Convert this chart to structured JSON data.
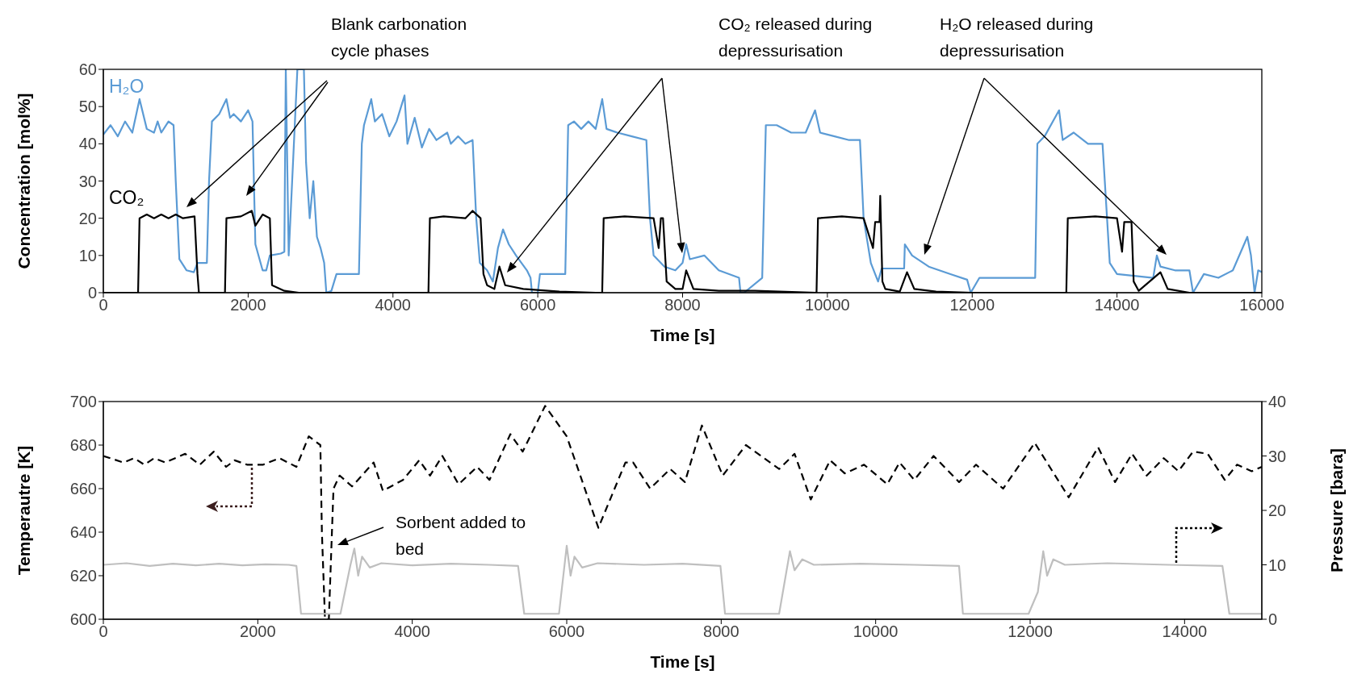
{
  "chart_data": [
    {
      "type": "line",
      "xlabel": "Time [s]",
      "ylabel": "Concentration [mol%]",
      "xlim": [
        0,
        16000
      ],
      "xticks": [
        0,
        2000,
        4000,
        6000,
        8000,
        10000,
        12000,
        14000,
        16000
      ],
      "ylim": [
        0,
        60
      ],
      "yticks": [
        0,
        10,
        20,
        30,
        40,
        50,
        60
      ],
      "grid": false,
      "legend": "left",
      "marker": "none",
      "line_style": "solid",
      "annotations": [
        "Blank carbonation cycle phases",
        "CO₂ released during depressurisation",
        "H₂O released during depressurisation"
      ],
      "series": [
        {
          "name": "H₂O",
          "color": "#5b9bd5",
          "x": [
            0,
            100,
            200,
            300,
            400,
            500,
            600,
            700,
            750,
            800,
            900,
            970,
            1000,
            1050,
            1150,
            1250,
            1300,
            1430,
            1460,
            1500,
            1600,
            1700,
            1750,
            1800,
            1900,
            2000,
            2060,
            2100,
            2200,
            2250,
            2300,
            2450,
            2500,
            2520,
            2560,
            2680,
            2770,
            2800,
            2850,
            2900,
            2950,
            3000,
            3050,
            3080,
            3150,
            3220,
            3400,
            3530,
            3570,
            3600,
            3700,
            3750,
            3850,
            3950,
            4050,
            4160,
            4200,
            4300,
            4400,
            4500,
            4600,
            4750,
            4800,
            4900,
            5000,
            5100,
            5150,
            5200,
            5300,
            5380,
            5450,
            5520,
            5600,
            5700,
            5850,
            5900,
            5920,
            6000,
            6030,
            6380,
            6420,
            6500,
            6600,
            6700,
            6800,
            6890,
            6950,
            7100,
            7300,
            7500,
            7550,
            7600,
            7750,
            7900,
            8000,
            8050,
            8100,
            8300,
            8500,
            8780,
            8800,
            8850,
            9100,
            9150,
            9300,
            9500,
            9700,
            9830,
            9900,
            10100,
            10300,
            10450,
            10500,
            10600,
            10700,
            10750,
            11060,
            11070,
            11170,
            11400,
            11700,
            11930,
            11980,
            12100,
            12870,
            12900,
            13000,
            13200,
            13250,
            13400,
            13600,
            13800,
            13900,
            14000,
            14500,
            14550,
            14600,
            14800,
            15000,
            15050,
            15200,
            15400,
            15600,
            15800,
            15850,
            15900,
            15950,
            16000
          ],
          "values": [
            42.5,
            45,
            42,
            46,
            43,
            52,
            44,
            43,
            46,
            43,
            46,
            45,
            30,
            9,
            6,
            5.5,
            8,
            8,
            30,
            46,
            48,
            52,
            47,
            48,
            46,
            49,
            46,
            13,
            6,
            6,
            10,
            10.5,
            11,
            60,
            10,
            60,
            60,
            35,
            20,
            30,
            15,
            12,
            8,
            0,
            0.5,
            5,
            5,
            5,
            40,
            45,
            52,
            46,
            48,
            42,
            46,
            53,
            40,
            47,
            39,
            44,
            41,
            43,
            40,
            42,
            40,
            41,
            20,
            8,
            6,
            3,
            12,
            17,
            13,
            10,
            6,
            4,
            0,
            0,
            5,
            5,
            45,
            46,
            44,
            46,
            44,
            52,
            44,
            43,
            42,
            41,
            20,
            10,
            7,
            6,
            8,
            13,
            9,
            10,
            6,
            4,
            0,
            0,
            4,
            45,
            45,
            43,
            43,
            49,
            43,
            42,
            41,
            41,
            20,
            8,
            3,
            6.5,
            6.5,
            13,
            10,
            7,
            5,
            3.5,
            0,
            4,
            4,
            40,
            42,
            49,
            41,
            43,
            40,
            40,
            8,
            5,
            4,
            10,
            7,
            6,
            6,
            0,
            5,
            4,
            6,
            15,
            10,
            0,
            6,
            5.5
          ]
        },
        {
          "name": "CO₂",
          "color": "#000000",
          "x": [
            0,
            480,
            500,
            600,
            700,
            800,
            900,
            1000,
            1100,
            1260,
            1300,
            1320,
            1680,
            1700,
            1900,
            2050,
            2100,
            2200,
            2300,
            2330,
            2500,
            2700,
            4490,
            4510,
            4700,
            5000,
            5100,
            5210,
            5250,
            5300,
            5400,
            5470,
            5550,
            5800,
            6300,
            6800,
            6890,
            6910,
            7200,
            7600,
            7670,
            7700,
            7730,
            7780,
            7900,
            8000,
            8050,
            8150,
            8500,
            9000,
            9850,
            9870,
            10200,
            10500,
            10630,
            10660,
            10720,
            10730,
            10760,
            10800,
            11000,
            11100,
            11200,
            11500,
            12000,
            13300,
            13320,
            13700,
            14000,
            14070,
            14100,
            14200,
            14230,
            14300,
            14600,
            14700,
            15000,
            16000
          ],
          "values": [
            0,
            0,
            20,
            21,
            20,
            21,
            20,
            21,
            20,
            20.5,
            5,
            0,
            0,
            20,
            20.5,
            22,
            18,
            21,
            20,
            2,
            0.5,
            0,
            0,
            20,
            20.5,
            20,
            22,
            20,
            5,
            2,
            1,
            7,
            2,
            1,
            0.3,
            0,
            0,
            20,
            20.5,
            20,
            12,
            20,
            20,
            3,
            1,
            1,
            6,
            1,
            0.5,
            0.5,
            0,
            20,
            20.5,
            20,
            12,
            19,
            19,
            26,
            3,
            1,
            0.3,
            5.5,
            1,
            0.3,
            0,
            0,
            20,
            20.5,
            20,
            11,
            19,
            19,
            3,
            0.5,
            5.5,
            1,
            0,
            0
          ]
        }
      ]
    },
    {
      "type": "line",
      "xlabel": "Time [s]",
      "ylabel": "Temperautre [K]",
      "y2label": "Pressure [bara]",
      "xlim": [
        0,
        15000
      ],
      "xticks": [
        0,
        2000,
        4000,
        6000,
        8000,
        10000,
        12000,
        14000
      ],
      "ylim": [
        600,
        700
      ],
      "yticks": [
        600,
        620,
        640,
        660,
        680,
        700
      ],
      "y2lim": [
        0,
        40
      ],
      "y2ticks": [
        0,
        10,
        20,
        30,
        40
      ],
      "grid": false,
      "legend": false,
      "marker": "none",
      "line_style": "solid",
      "annotations": [
        "Sorbent added to bed"
      ],
      "series": [
        {
          "color": "#000000",
          "line_style": "dashed",
          "x": [
            0,
            260,
            400,
            530,
            660,
            800,
            1060,
            1250,
            1430,
            1590,
            1700,
            1860,
            2070,
            2280,
            2500,
            2660,
            2810,
            2830,
            2870,
            2920,
            2980,
            3060,
            3220,
            3500,
            3620,
            3880,
            4090,
            4230,
            4390,
            4600,
            4840,
            5000,
            5270,
            5430,
            5720,
            6000,
            6410,
            6760,
            6860,
            7080,
            7340,
            7530,
            7750,
            8020,
            8320,
            8750,
            8950,
            9160,
            9410,
            9600,
            9850,
            10150,
            10310,
            10500,
            10750,
            11080,
            11300,
            11650,
            12060,
            12500,
            12880,
            13100,
            13320,
            13510,
            13730,
            13920,
            14110,
            14300,
            14520,
            14680,
            14870,
            15000
          ],
          "values": [
            675,
            672,
            674,
            671,
            674,
            672,
            676,
            671,
            677,
            670,
            673,
            671,
            671,
            674,
            670,
            684,
            680,
            640,
            600,
            600,
            660,
            666,
            661,
            672,
            659,
            664,
            673,
            666,
            675,
            662,
            670,
            664,
            685,
            677,
            698,
            684,
            642,
            672,
            672,
            660,
            669,
            663,
            689,
            666,
            680,
            669,
            676,
            655,
            673,
            667,
            671,
            662,
            672,
            664,
            675,
            663,
            671,
            660,
            681,
            656,
            679,
            663,
            676,
            666,
            674,
            668,
            677,
            676,
            664,
            671,
            668,
            670
          ]
        },
        {
          "color": "#bfbfbf",
          "axis": "y2",
          "x": [
            0,
            300,
            600,
            900,
            1200,
            1500,
            1800,
            2100,
            2400,
            2500,
            2560,
            3070,
            3200,
            3250,
            3300,
            3350,
            3450,
            3600,
            4000,
            4500,
            5000,
            5370,
            5450,
            5900,
            6000,
            6050,
            6100,
            6200,
            6400,
            7000,
            7500,
            7990,
            8050,
            8750,
            8890,
            8950,
            9050,
            9200,
            9800,
            10500,
            11080,
            11130,
            11980,
            12100,
            12170,
            12220,
            12300,
            12450,
            13000,
            13800,
            14490,
            14580,
            15000
          ],
          "values": [
            10,
            10.3,
            9.8,
            10.2,
            9.9,
            10.2,
            9.9,
            10.1,
            10,
            9.8,
            1,
            1,
            10,
            13,
            8,
            11.5,
            9.5,
            10.3,
            9.9,
            10.2,
            10,
            9.8,
            1,
            1,
            13.5,
            8,
            11.5,
            9.5,
            10.3,
            10,
            10.2,
            9.8,
            1,
            1,
            12.5,
            9,
            11,
            10,
            10.2,
            10,
            9.8,
            1,
            1,
            5,
            12.5,
            8,
            11,
            10,
            10.3,
            10,
            9.8,
            1,
            1
          ]
        }
      ]
    }
  ]
}
